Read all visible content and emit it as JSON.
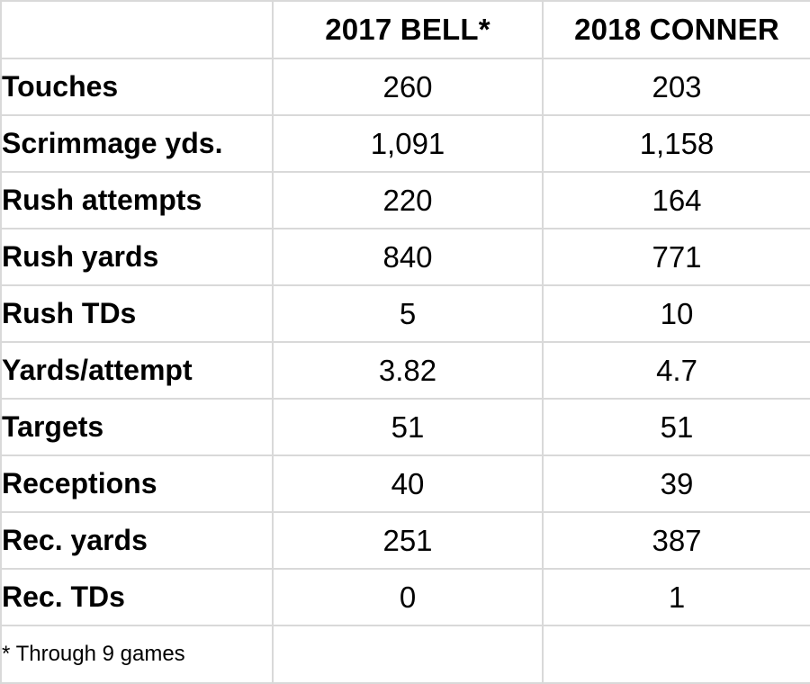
{
  "table": {
    "headers": [
      "",
      "2017 BELL*",
      "2018 CONNER"
    ],
    "rows": [
      {
        "label": "Touches",
        "bell": "260",
        "conner": "203"
      },
      {
        "label": "Scrimmage yds.",
        "bell": "1,091",
        "conner": "1,158"
      },
      {
        "label": "Rush attempts",
        "bell": "220",
        "conner": "164"
      },
      {
        "label": "Rush yards",
        "bell": "840",
        "conner": "771"
      },
      {
        "label": "Rush TDs",
        "bell": "5",
        "conner": "10"
      },
      {
        "label": "Yards/attempt",
        "bell": "3.82",
        "conner": "4.7"
      },
      {
        "label": "Targets",
        "bell": "51",
        "conner": "51"
      },
      {
        "label": "Receptions",
        "bell": "40",
        "conner": "39"
      },
      {
        "label": "Rec. yards",
        "bell": "251",
        "conner": "387"
      },
      {
        "label": "Rec. TDs",
        "bell": "0",
        "conner": "1"
      }
    ],
    "footnote": "* Through 9 games"
  },
  "colors": {
    "grid": "#d9d9d9",
    "text": "#000000",
    "background": "#ffffff"
  }
}
